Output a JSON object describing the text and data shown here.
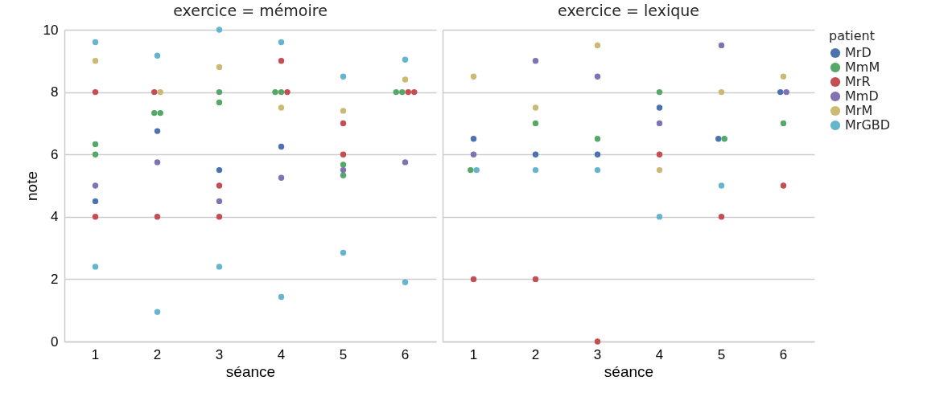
{
  "chart_data": [
    {
      "type": "scatter",
      "title": "exercice = mémoire",
      "xlabel": "séance",
      "ylabel": "note",
      "categories": [
        "1",
        "2",
        "3",
        "4",
        "5",
        "6"
      ],
      "ylim": [
        0,
        10
      ],
      "yticks": [
        0,
        2,
        4,
        6,
        8,
        10
      ],
      "grid": "y",
      "marker": "circle",
      "legend": "right",
      "legend_title": "patient",
      "series": [
        {
          "name": "MrD",
          "color": "#4c72b0",
          "x": [
            "1",
            "2",
            "3",
            "4"
          ],
          "values": [
            4.5,
            6.75,
            5.5,
            6.25
          ]
        },
        {
          "name": "MmM",
          "color": "#55a868",
          "x": [
            "1",
            "1",
            "2",
            "2",
            "3",
            "3",
            "4",
            "4",
            "5",
            "5",
            "6",
            "6"
          ],
          "values": [
            6.33,
            6,
            7.33,
            7.33,
            8,
            7.67,
            8,
            8,
            5.67,
            5.33,
            8,
            8
          ]
        },
        {
          "name": "MrR",
          "color": "#c44e52",
          "x": [
            "1",
            "1",
            "2",
            "2",
            "3",
            "3",
            "4",
            "4",
            "5",
            "5",
            "6",
            "6"
          ],
          "values": [
            8,
            4,
            8,
            4,
            5,
            4,
            9,
            8,
            7,
            6,
            8,
            8
          ]
        },
        {
          "name": "MmD",
          "color": "#8172b2",
          "x": [
            "1",
            "2",
            "3",
            "4",
            "5",
            "6"
          ],
          "values": [
            5,
            5.75,
            4.5,
            5.25,
            5.5,
            5.75
          ]
        },
        {
          "name": "MrM",
          "color": "#ccb974",
          "x": [
            "1",
            "2",
            "3",
            "4",
            "5",
            "6"
          ],
          "values": [
            9,
            8,
            8.8,
            7.5,
            7.4,
            8.4
          ]
        },
        {
          "name": "MrGBD",
          "color": "#64b5cd",
          "x": [
            "1",
            "1",
            "2",
            "2",
            "3",
            "3",
            "4",
            "4",
            "5",
            "5",
            "6",
            "6"
          ],
          "values": [
            9.6,
            2.4,
            9.17,
            0.95,
            10,
            2.4,
            9.6,
            1.43,
            8.5,
            2.85,
            9.04,
            1.9
          ]
        }
      ]
    },
    {
      "type": "scatter",
      "title": "exercice = lexique",
      "xlabel": "séance",
      "categories": [
        "1",
        "2",
        "3",
        "4",
        "5",
        "6"
      ],
      "ylim": [
        0,
        10
      ],
      "yticks": [
        0,
        2,
        4,
        6,
        8,
        10
      ],
      "tick_labels": "x",
      "grid": "y",
      "marker": "circle",
      "legend": "right",
      "series": [
        {
          "name": "MrD",
          "color": "#4c72b0",
          "x": [
            "1",
            "2",
            "3",
            "4",
            "5",
            "6"
          ],
          "values": [
            6.5,
            6,
            6,
            7.5,
            6.5,
            8
          ]
        },
        {
          "name": "MmM",
          "color": "#55a868",
          "x": [
            "1",
            "2",
            "3",
            "4",
            "5",
            "6"
          ],
          "values": [
            5.5,
            7,
            6.5,
            8,
            6.5,
            7
          ]
        },
        {
          "name": "MrR",
          "color": "#c44e52",
          "x": [
            "1",
            "2",
            "3",
            "4",
            "5",
            "6"
          ],
          "values": [
            2,
            2,
            0,
            6,
            4,
            5
          ]
        },
        {
          "name": "MmD",
          "color": "#8172b2",
          "x": [
            "1",
            "2",
            "3",
            "4",
            "5",
            "6"
          ],
          "values": [
            6,
            9,
            8.5,
            7,
            9.5,
            8
          ]
        },
        {
          "name": "MrM",
          "color": "#ccb974",
          "x": [
            "1",
            "2",
            "3",
            "4",
            "5",
            "6"
          ],
          "values": [
            8.5,
            7.5,
            9.5,
            5.5,
            8,
            8.5
          ]
        },
        {
          "name": "MrGBD",
          "color": "#64b5cd",
          "x": [
            "1",
            "2",
            "3",
            "4",
            "5",
            "6"
          ],
          "values": [
            5.5,
            5.5,
            5.5,
            4,
            5,
            null
          ]
        }
      ]
    }
  ]
}
